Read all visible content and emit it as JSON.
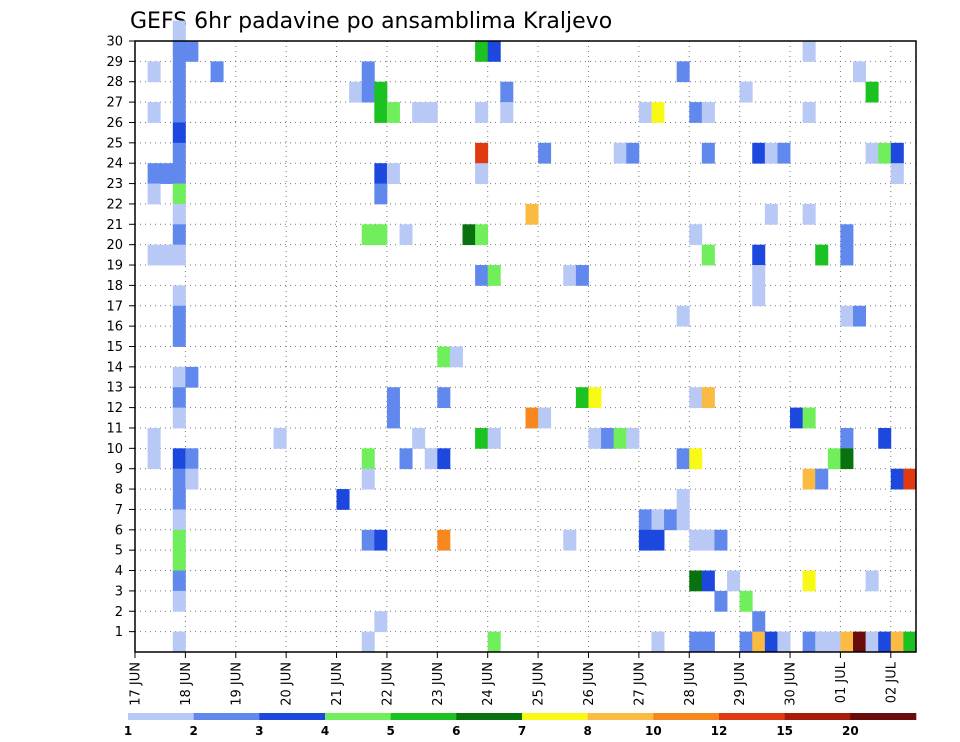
{
  "chart_data": {
    "type": "heatmap",
    "title": "GEFS 6hr padavine po ansamblima Kraljevo",
    "xlabel": "",
    "ylabel": "",
    "x_tick_labels": [
      "17 JUN",
      "18 JUN",
      "19 JUN",
      "20 JUN",
      "21 JUN",
      "22 JUN",
      "23 JUN",
      "24 JUN",
      "25 JUN",
      "26 JUN",
      "27 JUN",
      "28 JUN",
      "29 JUN",
      "30 JUN",
      "01 JUL",
      "02 JUL"
    ],
    "y_tick_labels": [
      "1",
      "2",
      "3",
      "4",
      "5",
      "6",
      "7",
      "8",
      "9",
      "10",
      "11",
      "12",
      "13",
      "14",
      "15",
      "16",
      "17",
      "18",
      "19",
      "20",
      "21",
      "22",
      "23",
      "24",
      "25",
      "26",
      "27",
      "28",
      "29",
      "30"
    ],
    "xlim": [
      0,
      61
    ],
    "ylim": [
      0,
      30
    ],
    "grid": true,
    "colorbar": {
      "levels": [
        1,
        2,
        3,
        4,
        5,
        6,
        7,
        8,
        10,
        12,
        15,
        20
      ],
      "label_levels": [
        "1",
        "2",
        "3",
        "4",
        "5",
        "6",
        "7",
        "8",
        "10",
        "12",
        "15",
        "20"
      ],
      "colors": [
        "#b9c9f5",
        "#6189ed",
        "#1c48dd",
        "#71ee5c",
        "#1cc221",
        "#08720f",
        "#f9f918",
        "#fbbb42",
        "#f6881f",
        "#e03a12",
        "#a71b0a",
        "#6b0c0c"
      ]
    },
    "cells": [
      [
        3,
        30,
        0
      ],
      [
        3,
        29,
        1
      ],
      [
        4,
        29,
        1
      ],
      [
        27,
        29,
        4
      ],
      [
        28,
        29,
        2
      ],
      [
        53,
        29,
        0
      ],
      [
        1,
        28,
        0
      ],
      [
        3,
        28,
        1
      ],
      [
        6,
        28,
        1
      ],
      [
        18,
        28,
        1
      ],
      [
        43,
        28,
        1
      ],
      [
        57,
        28,
        0
      ],
      [
        3,
        27,
        1
      ],
      [
        17,
        27,
        0
      ],
      [
        18,
        27,
        1
      ],
      [
        19,
        27,
        4
      ],
      [
        29,
        27,
        1
      ],
      [
        48,
        27,
        0
      ],
      [
        58,
        27,
        4
      ],
      [
        1,
        26,
        0
      ],
      [
        3,
        26,
        1
      ],
      [
        19,
        26,
        4
      ],
      [
        20,
        26,
        3
      ],
      [
        22,
        26,
        0
      ],
      [
        23,
        26,
        0
      ],
      [
        27,
        26,
        0
      ],
      [
        29,
        26,
        0
      ],
      [
        40,
        26,
        0
      ],
      [
        41,
        26,
        6
      ],
      [
        44,
        26,
        1
      ],
      [
        45,
        26,
        0
      ],
      [
        53,
        26,
        0
      ],
      [
        3,
        25,
        2
      ],
      [
        3,
        24,
        1
      ],
      [
        27,
        24,
        9
      ],
      [
        32,
        24,
        1
      ],
      [
        38,
        24,
        0
      ],
      [
        39,
        24,
        1
      ],
      [
        45,
        24,
        1
      ],
      [
        49,
        24,
        2
      ],
      [
        50,
        24,
        0
      ],
      [
        51,
        24,
        1
      ],
      [
        58,
        24,
        0
      ],
      [
        59,
        24,
        3
      ],
      [
        60,
        24,
        2
      ],
      [
        1,
        23,
        1
      ],
      [
        2,
        23,
        1
      ],
      [
        3,
        23,
        1
      ],
      [
        19,
        23,
        2
      ],
      [
        20,
        23,
        0
      ],
      [
        27,
        23,
        0
      ],
      [
        60,
        23,
        0
      ],
      [
        1,
        22,
        0
      ],
      [
        3,
        22,
        3
      ],
      [
        19,
        22,
        1
      ],
      [
        3,
        21,
        0
      ],
      [
        31,
        21,
        7
      ],
      [
        50,
        21,
        0
      ],
      [
        53,
        21,
        0
      ],
      [
        3,
        20,
        1
      ],
      [
        18,
        20,
        3
      ],
      [
        19,
        20,
        3
      ],
      [
        21,
        20,
        0
      ],
      [
        26,
        20,
        5
      ],
      [
        27,
        20,
        3
      ],
      [
        44,
        20,
        0
      ],
      [
        56,
        20,
        1
      ],
      [
        1,
        19,
        0
      ],
      [
        2,
        19,
        0
      ],
      [
        3,
        19,
        0
      ],
      [
        45,
        19,
        3
      ],
      [
        49,
        19,
        2
      ],
      [
        54,
        19,
        4
      ],
      [
        56,
        19,
        1
      ],
      [
        27,
        18,
        1
      ],
      [
        28,
        18,
        3
      ],
      [
        34,
        18,
        0
      ],
      [
        35,
        18,
        1
      ],
      [
        49,
        18,
        0
      ],
      [
        3,
        17,
        0
      ],
      [
        49,
        17,
        0
      ],
      [
        3,
        16,
        1
      ],
      [
        43,
        16,
        0
      ],
      [
        56,
        16,
        0
      ],
      [
        57,
        16,
        1
      ],
      [
        3,
        15,
        1
      ],
      [
        24,
        14,
        3
      ],
      [
        25,
        14,
        0
      ],
      [
        3,
        13,
        0
      ],
      [
        4,
        13,
        1
      ],
      [
        3,
        12,
        1
      ],
      [
        20,
        12,
        1
      ],
      [
        24,
        12,
        1
      ],
      [
        35,
        12,
        4
      ],
      [
        36,
        12,
        6
      ],
      [
        44,
        12,
        0
      ],
      [
        45,
        12,
        7
      ],
      [
        3,
        11,
        0
      ],
      [
        20,
        11,
        1
      ],
      [
        31,
        11,
        8
      ],
      [
        32,
        11,
        0
      ],
      [
        52,
        11,
        2
      ],
      [
        53,
        11,
        3
      ],
      [
        1,
        10,
        0
      ],
      [
        11,
        10,
        0
      ],
      [
        22,
        10,
        0
      ],
      [
        27,
        10,
        4
      ],
      [
        28,
        10,
        0
      ],
      [
        36,
        10,
        0
      ],
      [
        37,
        10,
        1
      ],
      [
        38,
        10,
        3
      ],
      [
        39,
        10,
        0
      ],
      [
        56,
        10,
        1
      ],
      [
        59,
        10,
        2
      ],
      [
        1,
        9,
        0
      ],
      [
        3,
        9,
        2
      ],
      [
        4,
        9,
        1
      ],
      [
        18,
        9,
        3
      ],
      [
        21,
        9,
        1
      ],
      [
        23,
        9,
        0
      ],
      [
        24,
        9,
        2
      ],
      [
        43,
        9,
        1
      ],
      [
        44,
        9,
        6
      ],
      [
        55,
        9,
        3
      ],
      [
        56,
        9,
        5
      ],
      [
        3,
        8,
        1
      ],
      [
        4,
        8,
        0
      ],
      [
        18,
        8,
        0
      ],
      [
        53,
        8,
        7
      ],
      [
        54,
        8,
        1
      ],
      [
        60,
        8,
        2
      ],
      [
        61,
        8,
        9
      ],
      [
        3,
        7,
        1
      ],
      [
        16,
        7,
        2
      ],
      [
        43,
        7,
        0
      ],
      [
        3,
        6,
        0
      ],
      [
        40,
        6,
        1
      ],
      [
        41,
        6,
        0
      ],
      [
        42,
        6,
        1
      ],
      [
        43,
        6,
        0
      ],
      [
        3,
        5,
        3
      ],
      [
        18,
        5,
        1
      ],
      [
        19,
        5,
        2
      ],
      [
        24,
        5,
        8
      ],
      [
        34,
        5,
        0
      ],
      [
        40,
        5,
        2
      ],
      [
        41,
        5,
        2
      ],
      [
        44,
        5,
        0
      ],
      [
        45,
        5,
        0
      ],
      [
        46,
        5,
        1
      ],
      [
        3,
        4,
        3
      ],
      [
        3,
        3,
        1
      ],
      [
        44,
        3,
        5
      ],
      [
        45,
        3,
        2
      ],
      [
        47,
        3,
        0
      ],
      [
        53,
        3,
        6
      ],
      [
        58,
        3,
        0
      ],
      [
        3,
        2,
        0
      ],
      [
        46,
        2,
        1
      ],
      [
        48,
        2,
        3
      ],
      [
        19,
        1,
        0
      ],
      [
        49,
        1,
        1
      ],
      [
        3,
        0,
        0
      ],
      [
        18,
        0,
        0
      ],
      [
        28,
        0,
        3
      ],
      [
        41,
        0,
        0
      ],
      [
        44,
        0,
        1
      ],
      [
        45,
        0,
        1
      ],
      [
        48,
        0,
        1
      ],
      [
        49,
        0,
        7
      ],
      [
        50,
        0,
        2
      ],
      [
        51,
        0,
        0
      ],
      [
        53,
        0,
        1
      ],
      [
        54,
        0,
        0
      ],
      [
        55,
        0,
        0
      ],
      [
        56,
        0,
        7
      ],
      [
        57,
        0,
        11
      ],
      [
        58,
        0,
        0
      ],
      [
        59,
        0,
        2
      ],
      [
        60,
        0,
        7
      ],
      [
        61,
        0,
        4
      ]
    ]
  }
}
